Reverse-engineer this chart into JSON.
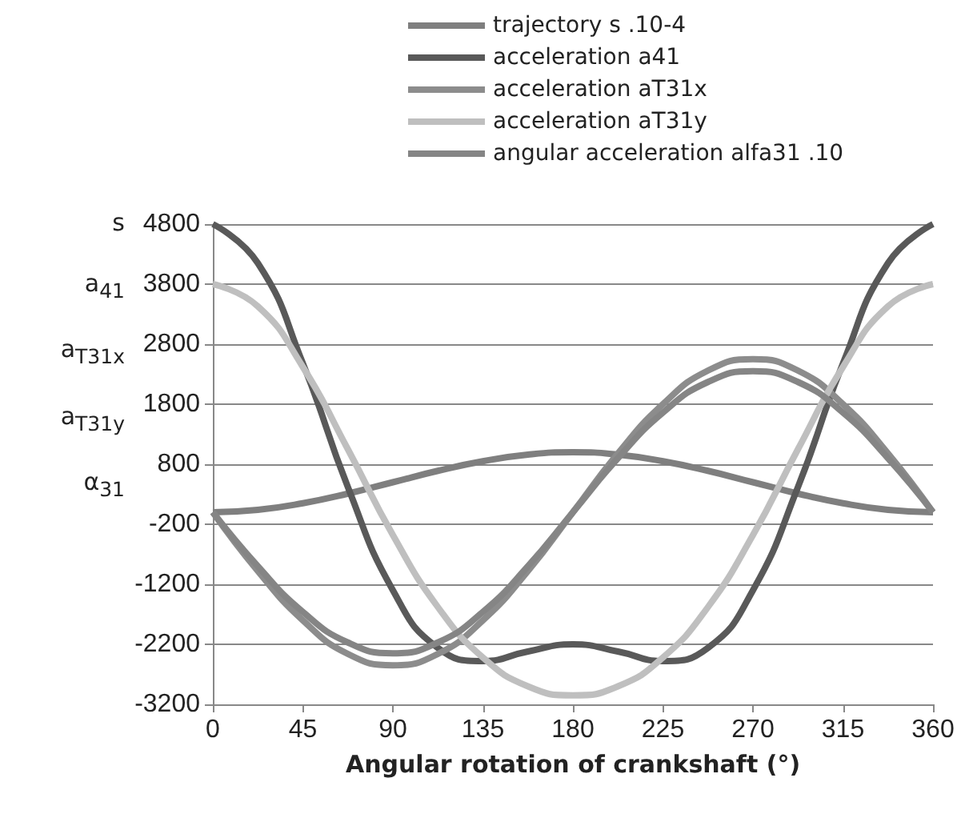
{
  "chart_data": {
    "type": "line",
    "xlabel": "Angular rotation of crankshaft (°)",
    "ylabel": "s\na$_{41}$\na$_{T31x}$\na$_{T31y}$\nα$_{31}$",
    "x": [
      0,
      22.5,
      45,
      67.5,
      90,
      112.5,
      135,
      157.5,
      180,
      202.5,
      225,
      247.5,
      270,
      292.5,
      315,
      337.5,
      360
    ],
    "series": [
      {
        "name": "trajectory s .10-4",
        "color": "#7f7f7f",
        "values": [
          0,
          40,
          150,
          310,
          500,
          690,
          850,
          960,
          1000,
          960,
          850,
          690,
          500,
          310,
          150,
          40,
          0
        ]
      },
      {
        "name": "acceleration a41",
        "color": "#595959",
        "values": [
          4800,
          4150,
          2480,
          420,
          -1300,
          -2260,
          -2480,
          -2320,
          -2200,
          -2320,
          -2480,
          -2260,
          -1300,
          420,
          2480,
          4150,
          4800
        ]
      },
      {
        "name": "acceleration aT31x",
        "color": "#8c8c8c",
        "values": [
          0,
          -980,
          -1800,
          -2360,
          -2550,
          -2360,
          -1800,
          -980,
          0,
          980,
          1800,
          2360,
          2550,
          2360,
          1800,
          980,
          0
        ]
      },
      {
        "name": "acceleration aT31y",
        "color": "#bfbfbf",
        "values": [
          3800,
          3430,
          2420,
          1050,
          -380,
          -1580,
          -2420,
          -2900,
          -3050,
          -2900,
          -2420,
          -1580,
          -380,
          1050,
          2420,
          3430,
          3800
        ]
      },
      {
        "name": "angular acceleration alfa31 .10",
        "color": "#858585",
        "values": [
          0,
          -900,
          -1660,
          -2170,
          -2350,
          -2170,
          -1660,
          -900,
          0,
          900,
          1660,
          2170,
          2350,
          2170,
          1660,
          900,
          0
        ]
      }
    ],
    "xlim": [
      0,
      360
    ],
    "xticks": [
      0,
      45,
      90,
      135,
      180,
      225,
      270,
      315,
      360
    ],
    "ylim": [
      -3200,
      4800
    ],
    "yticks": [
      -3200,
      -2200,
      -1200,
      -200,
      800,
      1800,
      2800,
      3800,
      4800
    ],
    "grid": "y",
    "legend": "top",
    "marker": "none",
    "line_style": "solid"
  }
}
